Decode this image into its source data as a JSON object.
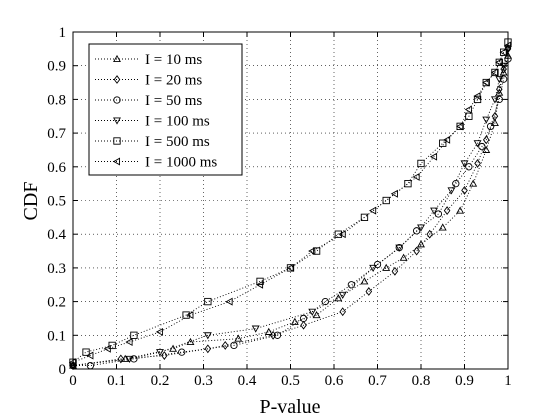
{
  "chart_data": {
    "type": "scatter",
    "xlabel": "P-value",
    "ylabel": "CDF",
    "xlim": [
      0,
      1
    ],
    "ylim": [
      0,
      1
    ],
    "xticks": [
      "0",
      "0.1",
      "0.2",
      "0.3",
      "0.4",
      "0.5",
      "0.6",
      "0.7",
      "0.8",
      "0.9",
      "1"
    ],
    "yticks": [
      "0",
      "0.1",
      "0.2",
      "0.3",
      "0.4",
      "0.5",
      "0.6",
      "0.7",
      "0.8",
      "0.9",
      "1"
    ],
    "grid": true,
    "legend_position": "top-left",
    "series": [
      {
        "name": "I = 10 ms",
        "marker": "triangle-up",
        "points": [
          [
            0.0,
            0.01
          ],
          [
            0.12,
            0.03
          ],
          [
            0.23,
            0.06
          ],
          [
            0.27,
            0.08
          ],
          [
            0.38,
            0.09
          ],
          [
            0.45,
            0.11
          ],
          [
            0.51,
            0.14
          ],
          [
            0.56,
            0.16
          ],
          [
            0.61,
            0.21
          ],
          [
            0.67,
            0.26
          ],
          [
            0.72,
            0.3
          ],
          [
            0.76,
            0.33
          ],
          [
            0.8,
            0.37
          ],
          [
            0.85,
            0.42
          ],
          [
            0.89,
            0.47
          ],
          [
            0.92,
            0.55
          ],
          [
            0.95,
            0.65
          ],
          [
            0.97,
            0.73
          ],
          [
            0.98,
            0.82
          ],
          [
            0.99,
            0.88
          ],
          [
            1.0,
            0.93
          ]
        ]
      },
      {
        "name": "I = 20 ms",
        "marker": "diamond",
        "points": [
          [
            0.0,
            0.01
          ],
          [
            0.11,
            0.03
          ],
          [
            0.21,
            0.04
          ],
          [
            0.31,
            0.06
          ],
          [
            0.35,
            0.07
          ],
          [
            0.46,
            0.1
          ],
          [
            0.53,
            0.13
          ],
          [
            0.62,
            0.17
          ],
          [
            0.68,
            0.23
          ],
          [
            0.74,
            0.29
          ],
          [
            0.79,
            0.35
          ],
          [
            0.82,
            0.4
          ],
          [
            0.86,
            0.47
          ],
          [
            0.9,
            0.53
          ],
          [
            0.93,
            0.61
          ],
          [
            0.95,
            0.68
          ],
          [
            0.97,
            0.75
          ],
          [
            0.98,
            0.83
          ],
          [
            0.99,
            0.89
          ],
          [
            1.0,
            0.95
          ]
        ]
      },
      {
        "name": "I = 50 ms",
        "marker": "circle",
        "points": [
          [
            0.0,
            0.01
          ],
          [
            0.04,
            0.01
          ],
          [
            0.14,
            0.03
          ],
          [
            0.25,
            0.05
          ],
          [
            0.37,
            0.07
          ],
          [
            0.47,
            0.1
          ],
          [
            0.53,
            0.15
          ],
          [
            0.58,
            0.2
          ],
          [
            0.64,
            0.25
          ],
          [
            0.7,
            0.31
          ],
          [
            0.75,
            0.36
          ],
          [
            0.79,
            0.41
          ],
          [
            0.84,
            0.46
          ],
          [
            0.88,
            0.55
          ],
          [
            0.91,
            0.6
          ],
          [
            0.94,
            0.66
          ],
          [
            0.96,
            0.72
          ],
          [
            0.98,
            0.8
          ],
          [
            0.99,
            0.86
          ],
          [
            1.0,
            0.92
          ]
        ]
      },
      {
        "name": "I = 100 ms",
        "marker": "triangle-down",
        "points": [
          [
            0.0,
            0.01
          ],
          [
            0.13,
            0.03
          ],
          [
            0.2,
            0.05
          ],
          [
            0.31,
            0.1
          ],
          [
            0.42,
            0.12
          ],
          [
            0.55,
            0.17
          ],
          [
            0.62,
            0.22
          ],
          [
            0.69,
            0.3
          ],
          [
            0.75,
            0.36
          ],
          [
            0.8,
            0.42
          ],
          [
            0.83,
            0.47
          ],
          [
            0.87,
            0.53
          ],
          [
            0.9,
            0.61
          ],
          [
            0.93,
            0.67
          ],
          [
            0.95,
            0.74
          ],
          [
            0.97,
            0.8
          ],
          [
            0.98,
            0.86
          ],
          [
            0.99,
            0.9
          ],
          [
            1.0,
            0.95
          ]
        ]
      },
      {
        "name": "I = 500 ms",
        "marker": "square",
        "points": [
          [
            0.0,
            0.02
          ],
          [
            0.03,
            0.05
          ],
          [
            0.09,
            0.07
          ],
          [
            0.14,
            0.1
          ],
          [
            0.26,
            0.16
          ],
          [
            0.31,
            0.2
          ],
          [
            0.43,
            0.26
          ],
          [
            0.5,
            0.3
          ],
          [
            0.56,
            0.35
          ],
          [
            0.61,
            0.4
          ],
          [
            0.67,
            0.45
          ],
          [
            0.72,
            0.5
          ],
          [
            0.77,
            0.55
          ],
          [
            0.8,
            0.61
          ],
          [
            0.85,
            0.67
          ],
          [
            0.89,
            0.72
          ],
          [
            0.91,
            0.75
          ],
          [
            0.93,
            0.8
          ],
          [
            0.95,
            0.85
          ],
          [
            0.97,
            0.88
          ],
          [
            0.98,
            0.91
          ],
          [
            0.99,
            0.94
          ],
          [
            1.0,
            0.97
          ]
        ]
      },
      {
        "name": "I = 1000 ms",
        "marker": "triangle-left",
        "points": [
          [
            0.0,
            0.02
          ],
          [
            0.04,
            0.04
          ],
          [
            0.08,
            0.06
          ],
          [
            0.13,
            0.08
          ],
          [
            0.2,
            0.11
          ],
          [
            0.27,
            0.16
          ],
          [
            0.36,
            0.2
          ],
          [
            0.43,
            0.25
          ],
          [
            0.5,
            0.3
          ],
          [
            0.55,
            0.35
          ],
          [
            0.62,
            0.4
          ],
          [
            0.69,
            0.47
          ],
          [
            0.74,
            0.52
          ],
          [
            0.79,
            0.57
          ],
          [
            0.83,
            0.63
          ],
          [
            0.86,
            0.68
          ],
          [
            0.89,
            0.72
          ],
          [
            0.91,
            0.77
          ],
          [
            0.93,
            0.81
          ],
          [
            0.95,
            0.85
          ],
          [
            0.97,
            0.88
          ],
          [
            0.98,
            0.91
          ],
          [
            0.99,
            0.94
          ],
          [
            1.0,
            0.96
          ]
        ]
      }
    ]
  }
}
